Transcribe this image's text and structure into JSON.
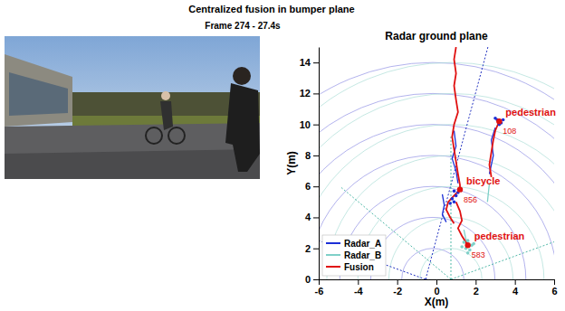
{
  "header": {
    "title": "Centralized fusion in bumper plane",
    "subtitle": "Frame 274 - 27.4s"
  },
  "chart_data": {
    "type": "line",
    "title": "Radar ground plane",
    "x_label": "X(m)",
    "y_label": "Y(m)",
    "xlim": [
      -6,
      6
    ],
    "ylim": [
      0,
      15
    ],
    "xticks": [
      -6,
      -4,
      -2,
      0,
      2,
      4,
      6
    ],
    "yticks": [
      0,
      2,
      4,
      6,
      8,
      10,
      12,
      14
    ],
    "grid": false,
    "legend": "lower left",
    "series": [
      {
        "name": "Radar_A",
        "color": "#1c2fd6",
        "type": "line",
        "marker": "none",
        "line_style": "solid",
        "x": [
          0.3,
          0.4,
          0.3,
          0.5,
          null,
          0.9,
          1.0,
          0.8,
          1.0,
          1.1,
          null,
          2.7,
          2.9,
          2.8,
          3.0
        ],
        "values": [
          5.5,
          4.8,
          4.2,
          3.7,
          null,
          9.6,
          8.6,
          7.8,
          7.0,
          6.2,
          null,
          6.8,
          8.0,
          9.0,
          9.8
        ]
      },
      {
        "name": "Radar_B",
        "color": "#7fd0c8",
        "type": "line",
        "marker": "none",
        "line_style": "solid",
        "x": [
          1.4,
          1.5,
          1.6,
          null,
          2.6,
          2.7
        ],
        "values": [
          3.2,
          2.6,
          2.1,
          null,
          5.0,
          6.2
        ]
      },
      {
        "name": "Fusion",
        "color": "#e01010",
        "type": "line",
        "marker": "none",
        "line_style": "solid",
        "x": [
          1.0,
          0.9,
          1.0,
          0.9,
          1.0,
          1.1,
          0.9,
          0.8,
          0.9,
          1.0,
          1.1,
          1.2,
          1.2,
          0.9,
          0.6,
          0.5,
          0.7,
          0.9,
          null,
          2.8,
          2.7,
          2.8,
          2.9,
          3.0,
          3.2,
          null,
          1.0,
          1.2,
          1.3,
          1.1,
          1.3,
          1.6
        ],
        "values": [
          15.0,
          14.2,
          13.3,
          12.5,
          11.6,
          10.8,
          10.0,
          9.2,
          8.4,
          7.6,
          6.8,
          6.1,
          5.8,
          5.4,
          5.0,
          4.5,
          4.0,
          3.6,
          null,
          6.6,
          7.4,
          8.2,
          9.0,
          9.6,
          10.2,
          null,
          5.0,
          4.4,
          3.8,
          3.3,
          2.8,
          2.2
        ]
      },
      {
        "color": "#1c2fd6",
        "type": "scatter",
        "marker": "circle",
        "x": [
          0.8,
          0.9,
          1.0,
          0.7,
          1.1,
          0.9,
          3.1,
          3.3,
          3.0,
          3.4,
          3.2
        ],
        "values": [
          5.2,
          5.0,
          5.4,
          4.9,
          5.6,
          5.7,
          10.3,
          10.1,
          10.4,
          10.3,
          10.0
        ]
      },
      {
        "color": "#7fd0c8",
        "type": "scatter",
        "marker": "circle",
        "x": [
          1.4,
          1.6,
          1.8,
          1.5,
          1.7,
          1.9,
          1.3,
          1.6
        ],
        "values": [
          2.4,
          2.5,
          2.2,
          2.0,
          1.9,
          2.3,
          2.1,
          1.7
        ]
      }
    ],
    "annotations": [
      {
        "text": "pedestrian",
        "label": "108",
        "x": 3.2,
        "y": 10.2
      },
      {
        "text": "bicycle",
        "label": "856",
        "x": 1.2,
        "y": 5.8
      },
      {
        "text": "pedestrian",
        "label": "583",
        "x": 1.6,
        "y": 2.2
      }
    ]
  }
}
